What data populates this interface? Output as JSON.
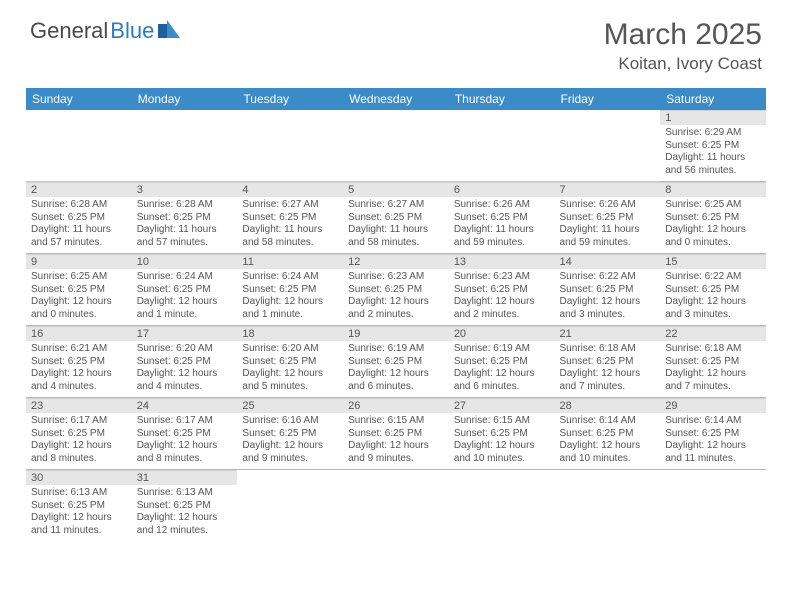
{
  "brand": {
    "name1": "General",
    "name2": "Blue"
  },
  "title": "March 2025",
  "location": "Koitan, Ivory Coast",
  "colors": {
    "header_bg": "#3b8bc8",
    "header_text": "#ffffff",
    "day_bar_bg": "#e6e6e6",
    "text": "#555555",
    "cell_border": "#9bbfd9"
  },
  "day_headers": [
    "Sunday",
    "Monday",
    "Tuesday",
    "Wednesday",
    "Thursday",
    "Friday",
    "Saturday"
  ],
  "first_weekday_index": 6,
  "days": [
    {
      "n": 1,
      "sunrise": "6:29 AM",
      "sunset": "6:25 PM",
      "daylight": "11 hours and 56 minutes."
    },
    {
      "n": 2,
      "sunrise": "6:28 AM",
      "sunset": "6:25 PM",
      "daylight": "11 hours and 57 minutes."
    },
    {
      "n": 3,
      "sunrise": "6:28 AM",
      "sunset": "6:25 PM",
      "daylight": "11 hours and 57 minutes."
    },
    {
      "n": 4,
      "sunrise": "6:27 AM",
      "sunset": "6:25 PM",
      "daylight": "11 hours and 58 minutes."
    },
    {
      "n": 5,
      "sunrise": "6:27 AM",
      "sunset": "6:25 PM",
      "daylight": "11 hours and 58 minutes."
    },
    {
      "n": 6,
      "sunrise": "6:26 AM",
      "sunset": "6:25 PM",
      "daylight": "11 hours and 59 minutes."
    },
    {
      "n": 7,
      "sunrise": "6:26 AM",
      "sunset": "6:25 PM",
      "daylight": "11 hours and 59 minutes."
    },
    {
      "n": 8,
      "sunrise": "6:25 AM",
      "sunset": "6:25 PM",
      "daylight": "12 hours and 0 minutes."
    },
    {
      "n": 9,
      "sunrise": "6:25 AM",
      "sunset": "6:25 PM",
      "daylight": "12 hours and 0 minutes."
    },
    {
      "n": 10,
      "sunrise": "6:24 AM",
      "sunset": "6:25 PM",
      "daylight": "12 hours and 1 minute."
    },
    {
      "n": 11,
      "sunrise": "6:24 AM",
      "sunset": "6:25 PM",
      "daylight": "12 hours and 1 minute."
    },
    {
      "n": 12,
      "sunrise": "6:23 AM",
      "sunset": "6:25 PM",
      "daylight": "12 hours and 2 minutes."
    },
    {
      "n": 13,
      "sunrise": "6:23 AM",
      "sunset": "6:25 PM",
      "daylight": "12 hours and 2 minutes."
    },
    {
      "n": 14,
      "sunrise": "6:22 AM",
      "sunset": "6:25 PM",
      "daylight": "12 hours and 3 minutes."
    },
    {
      "n": 15,
      "sunrise": "6:22 AM",
      "sunset": "6:25 PM",
      "daylight": "12 hours and 3 minutes."
    },
    {
      "n": 16,
      "sunrise": "6:21 AM",
      "sunset": "6:25 PM",
      "daylight": "12 hours and 4 minutes."
    },
    {
      "n": 17,
      "sunrise": "6:20 AM",
      "sunset": "6:25 PM",
      "daylight": "12 hours and 4 minutes."
    },
    {
      "n": 18,
      "sunrise": "6:20 AM",
      "sunset": "6:25 PM",
      "daylight": "12 hours and 5 minutes."
    },
    {
      "n": 19,
      "sunrise": "6:19 AM",
      "sunset": "6:25 PM",
      "daylight": "12 hours and 6 minutes."
    },
    {
      "n": 20,
      "sunrise": "6:19 AM",
      "sunset": "6:25 PM",
      "daylight": "12 hours and 6 minutes."
    },
    {
      "n": 21,
      "sunrise": "6:18 AM",
      "sunset": "6:25 PM",
      "daylight": "12 hours and 7 minutes."
    },
    {
      "n": 22,
      "sunrise": "6:18 AM",
      "sunset": "6:25 PM",
      "daylight": "12 hours and 7 minutes."
    },
    {
      "n": 23,
      "sunrise": "6:17 AM",
      "sunset": "6:25 PM",
      "daylight": "12 hours and 8 minutes."
    },
    {
      "n": 24,
      "sunrise": "6:17 AM",
      "sunset": "6:25 PM",
      "daylight": "12 hours and 8 minutes."
    },
    {
      "n": 25,
      "sunrise": "6:16 AM",
      "sunset": "6:25 PM",
      "daylight": "12 hours and 9 minutes."
    },
    {
      "n": 26,
      "sunrise": "6:15 AM",
      "sunset": "6:25 PM",
      "daylight": "12 hours and 9 minutes."
    },
    {
      "n": 27,
      "sunrise": "6:15 AM",
      "sunset": "6:25 PM",
      "daylight": "12 hours and 10 minutes."
    },
    {
      "n": 28,
      "sunrise": "6:14 AM",
      "sunset": "6:25 PM",
      "daylight": "12 hours and 10 minutes."
    },
    {
      "n": 29,
      "sunrise": "6:14 AM",
      "sunset": "6:25 PM",
      "daylight": "12 hours and 11 minutes."
    },
    {
      "n": 30,
      "sunrise": "6:13 AM",
      "sunset": "6:25 PM",
      "daylight": "12 hours and 11 minutes."
    },
    {
      "n": 31,
      "sunrise": "6:13 AM",
      "sunset": "6:25 PM",
      "daylight": "12 hours and 12 minutes."
    }
  ],
  "labels": {
    "sunrise": "Sunrise:",
    "sunset": "Sunset:",
    "daylight": "Daylight:"
  }
}
